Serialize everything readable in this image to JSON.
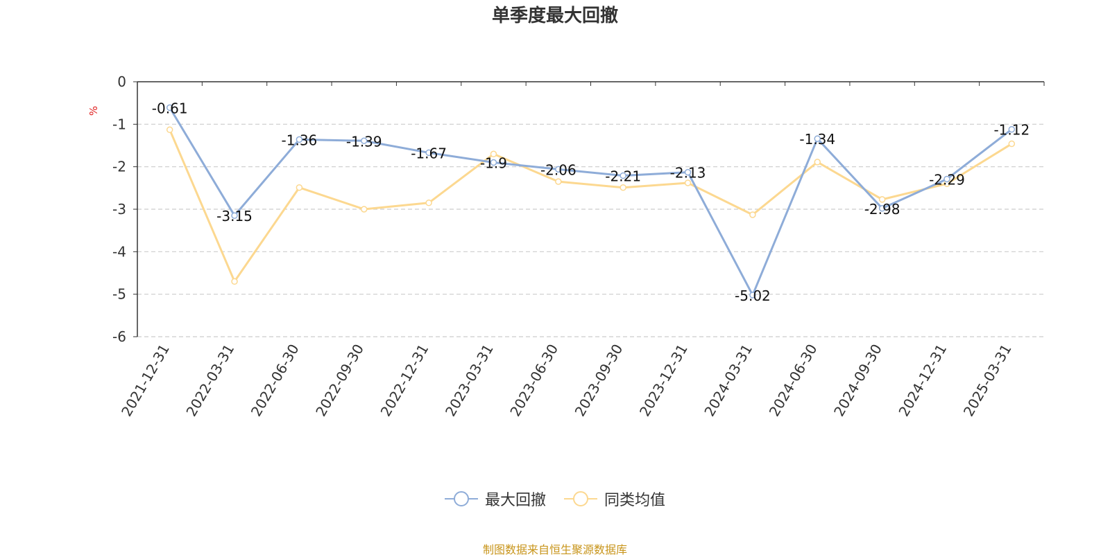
{
  "chart_data": {
    "type": "line",
    "title": "单季度最大回撤",
    "ylabel": "%",
    "ylim": [
      -6,
      0
    ],
    "yticks": [
      0,
      -1,
      -2,
      -3,
      -4,
      -5,
      -6
    ],
    "grid": true,
    "legend_position": "bottom",
    "categories": [
      "2021-12-31",
      "2022-03-31",
      "2022-06-30",
      "2022-09-30",
      "2022-12-31",
      "2023-03-31",
      "2023-06-30",
      "2023-09-30",
      "2023-12-31",
      "2024-03-31",
      "2024-06-30",
      "2024-09-30",
      "2024-12-31",
      "2025-03-31"
    ],
    "series": [
      {
        "name": "最大回撤",
        "color": "#8eacd8",
        "labels_shown": true,
        "values": [
          -0.61,
          -3.15,
          -1.36,
          -1.39,
          -1.67,
          -1.9,
          -2.06,
          -2.21,
          -2.13,
          -5.02,
          -1.34,
          -2.98,
          -2.29,
          -1.12
        ]
      },
      {
        "name": "同类均值",
        "color": "#fcd890",
        "labels_shown": false,
        "values": [
          -1.13,
          -4.7,
          -2.49,
          -3.0,
          -2.85,
          -1.7,
          -2.35,
          -2.49,
          -2.38,
          -3.13,
          -1.89,
          -2.77,
          -2.4,
          -1.46
        ]
      }
    ]
  },
  "footer": {
    "source": "制图数据来自恒生聚源数据库"
  }
}
